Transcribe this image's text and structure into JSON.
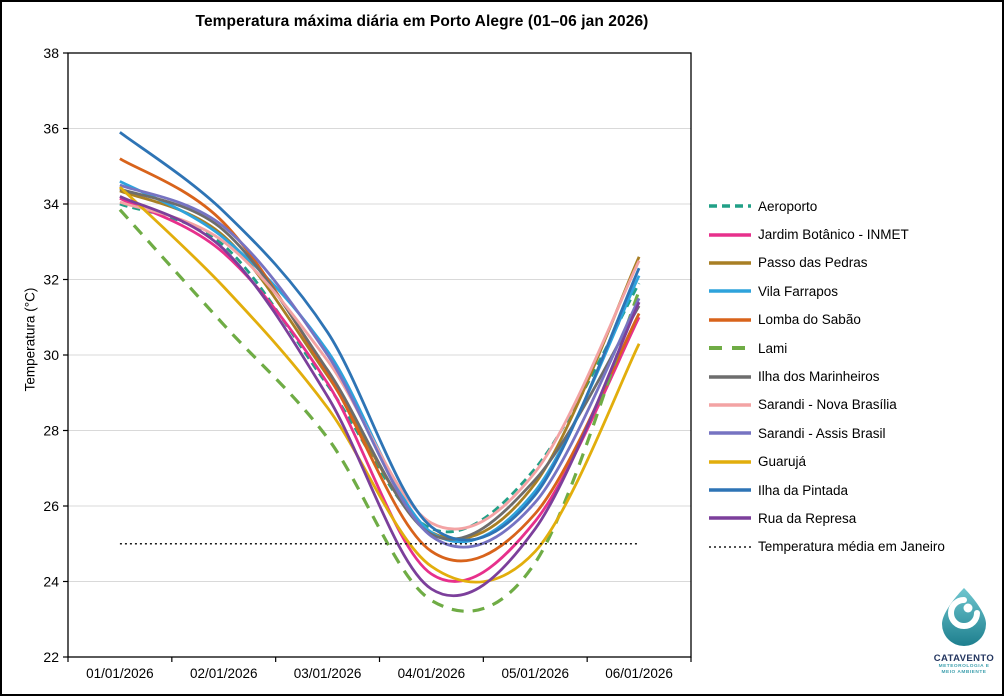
{
  "title": "Temperatura máxima diária em Porto Alegre (01–06 jan 2026)",
  "y_axis_title": "Temperatura (°C)",
  "logo": {
    "name": "CATAVENTO",
    "subtitle_line1": "METEOROLOGIA E",
    "subtitle_line2": "MEIO AMBIENTE",
    "drop_color_top": "#6ec6cf",
    "drop_color_bottom": "#1e7f8e"
  },
  "chart_data": {
    "type": "line",
    "title": "Temperatura máxima diária em Porto Alegre (01–06 jan 2026)",
    "xlabel": "",
    "ylabel": "Temperatura (°C)",
    "ylim": [
      22,
      38
    ],
    "ytick_step": 2,
    "yticks": [
      22,
      24,
      26,
      28,
      30,
      32,
      34,
      36,
      38
    ],
    "grid": "horizontal-light-gray",
    "legend_position": "right-outside",
    "line_style": "smoothed",
    "categories": [
      "01/01/2026",
      "02/01/2026",
      "03/01/2026",
      "04/01/2026",
      "05/01/2026",
      "06/01/2026"
    ],
    "series": [
      {
        "name": "Aeroporto",
        "color": "#21a087",
        "style": "dashed",
        "values": [
          34.0,
          32.9,
          29.2,
          25.4,
          27.0,
          31.9
        ]
      },
      {
        "name": "Jardim Botânico - INMET",
        "color": "#e7308c",
        "style": "solid",
        "values": [
          34.15,
          32.7,
          29.25,
          24.2,
          25.6,
          31.0
        ]
      },
      {
        "name": "Passo das Pedras",
        "color": "#a87f24",
        "style": "solid",
        "values": [
          34.35,
          33.15,
          29.45,
          25.3,
          26.6,
          32.6
        ]
      },
      {
        "name": "Vila Farrapos",
        "color": "#2ea3dc",
        "style": "solid",
        "values": [
          34.6,
          33.1,
          30.1,
          25.3,
          26.4,
          32.1
        ]
      },
      {
        "name": "Lomba do Sabão",
        "color": "#d8631b",
        "style": "solid",
        "values": [
          35.2,
          33.5,
          29.5,
          24.8,
          25.8,
          31.1
        ]
      },
      {
        "name": "Lami",
        "color": "#6fac45",
        "style": "long-dash",
        "values": [
          33.85,
          30.8,
          27.8,
          23.5,
          24.5,
          31.7
        ]
      },
      {
        "name": "Ilha dos Marinheiros",
        "color": "#6d6d6d",
        "style": "solid",
        "values": [
          34.4,
          33.3,
          29.6,
          25.25,
          26.7,
          31.3
        ]
      },
      {
        "name": "Sarandi - Nova Brasília",
        "color": "#f3a3a4",
        "style": "solid",
        "values": [
          34.05,
          33.0,
          29.85,
          25.55,
          26.9,
          32.5
        ]
      },
      {
        "name": "Sarandi - Assis Brasil",
        "color": "#7673c2",
        "style": "solid",
        "values": [
          34.5,
          33.4,
          30.0,
          25.2,
          26.1,
          31.5
        ]
      },
      {
        "name": "Guarujá",
        "color": "#e2ae0c",
        "style": "solid",
        "values": [
          34.45,
          31.8,
          28.6,
          24.4,
          24.8,
          30.3
        ]
      },
      {
        "name": "Ilha da Pintada",
        "color": "#2e74b5",
        "style": "solid",
        "values": [
          35.9,
          33.8,
          30.6,
          25.45,
          26.3,
          32.3
        ]
      },
      {
        "name": "Rua da Represa",
        "color": "#7c3f9b",
        "style": "solid",
        "values": [
          34.2,
          32.8,
          28.9,
          23.8,
          25.4,
          31.4
        ]
      },
      {
        "name": "Temperatura média em Janeiro",
        "color": "#1a1a1a",
        "style": "dotted",
        "values": [
          25.0,
          25.0,
          25.0,
          25.0,
          25.0,
          25.0
        ]
      }
    ]
  }
}
